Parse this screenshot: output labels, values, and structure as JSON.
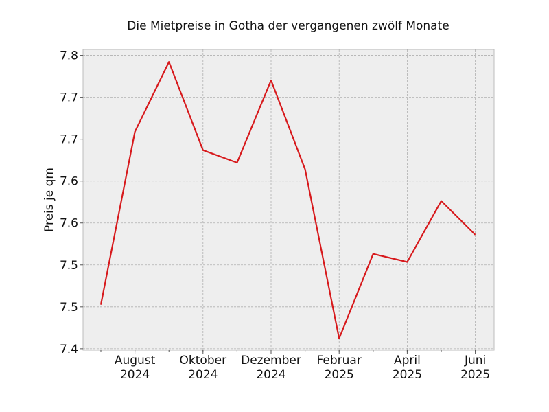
{
  "chart_data": {
    "type": "line",
    "title": "Die Mietpreise in Gotha der vergangenen zwölf Monate",
    "xlabel": "",
    "ylabel": "Preis je qm",
    "x": [
      "2024-07",
      "2024-08",
      "2024-09",
      "2024-10",
      "2024-11",
      "2024-12",
      "2025-01",
      "2025-02",
      "2025-03",
      "2025-04",
      "2025-05",
      "2025-06"
    ],
    "series": [
      {
        "values": [
          7.46,
          7.695,
          7.79,
          7.67,
          7.653,
          7.765,
          7.644,
          7.414,
          7.529,
          7.518,
          7.601,
          7.555
        ],
        "color": "#d7191c"
      }
    ],
    "ylim": [
      7.398,
      7.807
    ],
    "yticks": [
      7.4,
      7.457,
      7.514,
      7.571,
      7.628,
      7.685,
      7.742,
      7.799
    ],
    "ytick_labels": [
      "7.4",
      "7.5",
      "7.5",
      "7.6",
      "7.6",
      "7.7",
      "7.7",
      "7.8"
    ],
    "xticks": [
      {
        "x": "2024-08",
        "line1": "August",
        "line2": "2024"
      },
      {
        "x": "2024-10",
        "line1": "Oktober",
        "line2": "2024"
      },
      {
        "x": "2024-12",
        "line1": "Dezember",
        "line2": "2024"
      },
      {
        "x": "2025-02",
        "line1": "Februar",
        "line2": "2025"
      },
      {
        "x": "2025-04",
        "line1": "April",
        "line2": "2025"
      },
      {
        "x": "2025-06",
        "line1": "Juni",
        "line2": "2025"
      }
    ],
    "grid": true,
    "background": "#eeeeee"
  }
}
